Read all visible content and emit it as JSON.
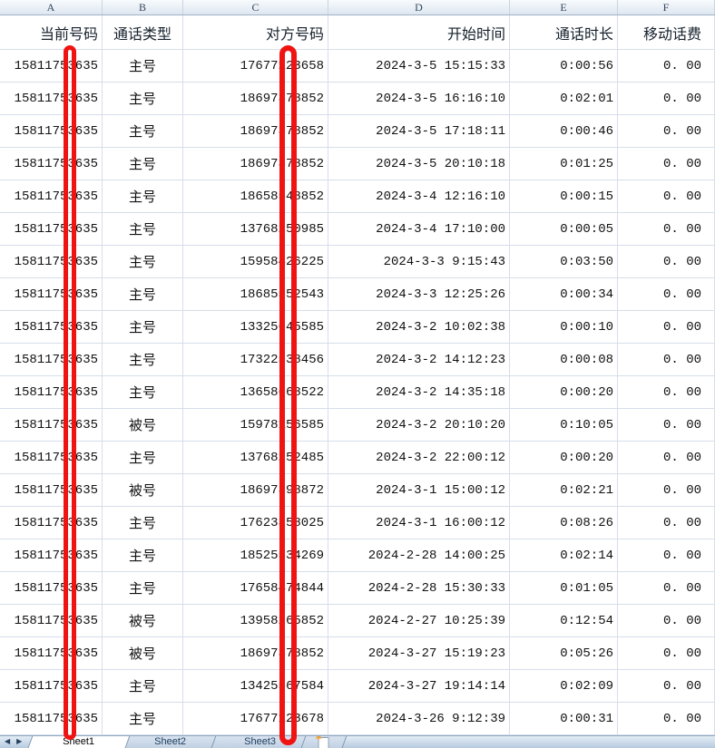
{
  "app": {
    "kind": "spreadsheet-call-log"
  },
  "column_letters": [
    "A",
    "B",
    "C",
    "D",
    "E",
    "F"
  ],
  "column_headers": [
    "当前号码",
    "通话类型",
    "对方号码",
    "开始时间",
    "通话时长",
    "移动话费"
  ],
  "rows": [
    [
      "15811753635",
      "主号",
      "17677123658",
      "2024-3-5 15:15:33",
      "0:00:56",
      "0. 00"
    ],
    [
      "15811753635",
      "主号",
      "18697378852",
      "2024-3-5 16:16:10",
      "0:02:01",
      "0. 00"
    ],
    [
      "15811753635",
      "主号",
      "18697378852",
      "2024-3-5 17:18:11",
      "0:00:46",
      "0. 00"
    ],
    [
      "15811753635",
      "主号",
      "18697378852",
      "2024-3-5 20:10:18",
      "0:01:25",
      "0. 00"
    ],
    [
      "15811753635",
      "主号",
      "18658548852",
      "2024-3-4 12:16:10",
      "0:00:15",
      "0. 00"
    ],
    [
      "15811753635",
      "主号",
      "13768250985",
      "2024-3-4 17:10:00",
      "0:00:05",
      "0. 00"
    ],
    [
      "15811753635",
      "主号",
      "15958426225",
      "2024-3-3 9:15:43",
      "0:03:50",
      "0. 00"
    ],
    [
      "15811753635",
      "主号",
      "18685552543",
      "2024-3-3 12:25:26",
      "0:00:34",
      "0. 00"
    ],
    [
      "15811753635",
      "主号",
      "13325645585",
      "2024-3-2 10:02:38",
      "0:00:10",
      "0. 00"
    ],
    [
      "15811753635",
      "主号",
      "17322538456",
      "2024-3-2 14:12:23",
      "0:00:08",
      "0. 00"
    ],
    [
      "15811753635",
      "主号",
      "13658668522",
      "2024-3-2 14:35:18",
      "0:00:20",
      "0. 00"
    ],
    [
      "15811753635",
      "被号",
      "15978156585",
      "2024-3-2 20:10:20",
      "0:10:05",
      "0. 00"
    ],
    [
      "15811753635",
      "主号",
      "13768252485",
      "2024-3-2 22:00:12",
      "0:00:20",
      "0. 00"
    ],
    [
      "15811753635",
      "被号",
      "18697398872",
      "2024-3-1 15:00:12",
      "0:02:21",
      "0. 00"
    ],
    [
      "15811753635",
      "主号",
      "17623358025",
      "2024-3-1 16:00:12",
      "0:08:26",
      "0. 00"
    ],
    [
      "15811753635",
      "主号",
      "18525534269",
      "2024-2-28 14:00:25",
      "0:02:14",
      "0. 00"
    ],
    [
      "15811753635",
      "主号",
      "17658474844",
      "2024-2-28 15:30:33",
      "0:01:05",
      "0. 00"
    ],
    [
      "15811753635",
      "被号",
      "13958265852",
      "2024-2-27 10:25:39",
      "0:12:54",
      "0. 00"
    ],
    [
      "15811753635",
      "被号",
      "18697378852",
      "2024-3-27 15:19:23",
      "0:05:26",
      "0. 00"
    ],
    [
      "15811753635",
      "主号",
      "13425567584",
      "2024-3-27 19:14:14",
      "0:02:09",
      "0. 00"
    ],
    [
      "15811753635",
      "主号",
      "17677123678",
      "2024-3-26 9:12:39",
      "0:00:31",
      "0. 00"
    ]
  ],
  "sheet_tabs": {
    "tabs": [
      "Sheet1",
      "Sheet2",
      "Sheet3"
    ],
    "active": "Sheet1",
    "nav_prev": "◀",
    "nav_next": "▶",
    "insert_spark": "✱"
  },
  "annotations": {
    "redaction_marks": [
      "column-A-phone-digit",
      "column-C-phone-digit"
    ],
    "redaction_color": "#EF1412"
  },
  "colors": {
    "grid_line": "#D6DEE9",
    "header_strip_bottom": "#DDE6F0",
    "tabbar_bg": "#B6CADF",
    "text": "#111111"
  }
}
